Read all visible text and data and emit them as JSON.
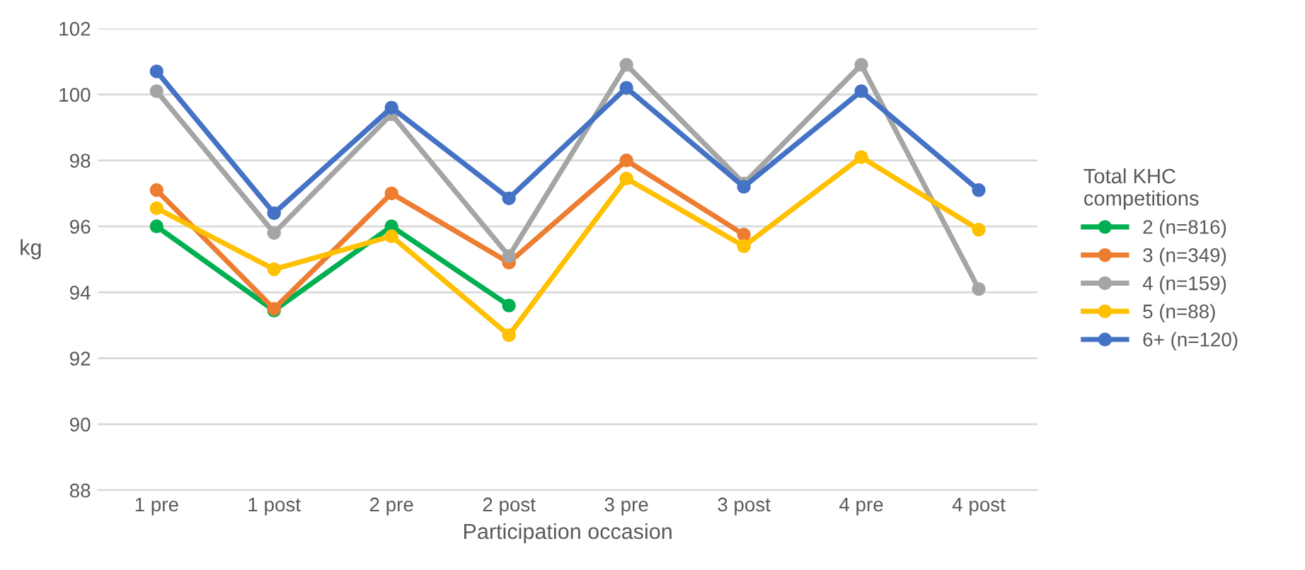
{
  "chart_data": {
    "type": "line",
    "xlabel": "Participation occasion",
    "ylabel": "kg",
    "legend_title": "Total KHC\ncompetitions",
    "categories": [
      "1 pre",
      "1 post",
      "2 pre",
      "2 post",
      "3 pre",
      "3 post",
      "4 pre",
      "4 post"
    ],
    "series": [
      {
        "name": "2 (n=816)",
        "color": "#00b050",
        "values": [
          96.0,
          93.45,
          96.0,
          93.6,
          null,
          null,
          null,
          null
        ]
      },
      {
        "name": "3 (n=349)",
        "color": "#ed7d31",
        "values": [
          97.1,
          93.5,
          97.0,
          94.9,
          98.0,
          95.75,
          null,
          null
        ]
      },
      {
        "name": "4 (n=159)",
        "color": "#a5a5a5",
        "values": [
          100.1,
          95.8,
          99.4,
          95.1,
          100.9,
          97.3,
          100.9,
          94.1
        ]
      },
      {
        "name": "5 (n=88)",
        "color": "#ffc000",
        "values": [
          96.55,
          94.7,
          95.7,
          92.7,
          97.45,
          95.4,
          98.1,
          95.9
        ]
      },
      {
        "name": "6+ (n=120)",
        "color": "#4472c4",
        "values": [
          100.7,
          96.4,
          99.6,
          96.85,
          100.2,
          97.2,
          100.1,
          97.1
        ]
      }
    ],
    "ylim": [
      88,
      102
    ],
    "yticks": [
      88,
      90,
      92,
      94,
      96,
      98,
      100,
      102
    ],
    "grid": "y",
    "legend": "right",
    "marker": "circle",
    "line_style": "solid"
  }
}
